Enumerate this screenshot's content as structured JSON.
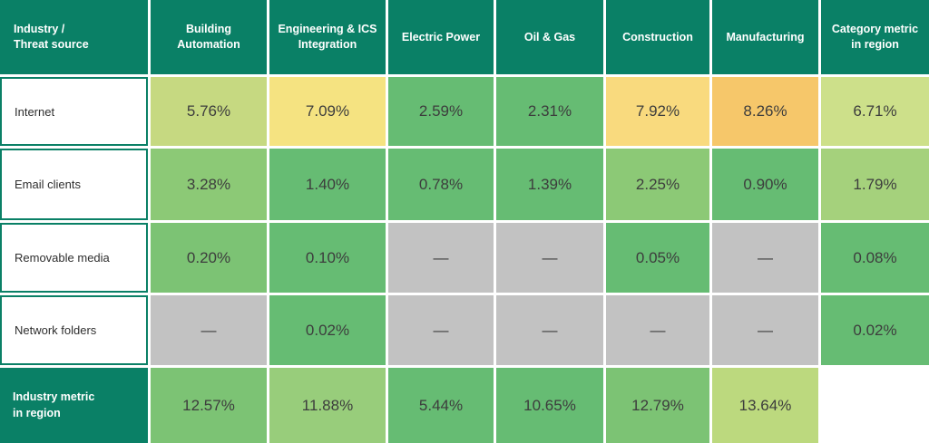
{
  "table": {
    "columns": [
      {
        "label": "Industry /\nThreat source"
      },
      {
        "label": "Building Automation"
      },
      {
        "label": "Engineering & ICS\nIntegration"
      },
      {
        "label": "Electric Power"
      },
      {
        "label": "Oil & Gas"
      },
      {
        "label": "Construction"
      },
      {
        "label": "Manufacturing"
      },
      {
        "label": "Category metric\nin region"
      }
    ],
    "rows": [
      {
        "label": "Internet",
        "teal_label": false,
        "cells": [
          {
            "text": "5.76%",
            "bg": "#c6d981"
          },
          {
            "text": "7.09%",
            "bg": "#f5e381"
          },
          {
            "text": "2.59%",
            "bg": "#66bc73"
          },
          {
            "text": "2.31%",
            "bg": "#66bc73"
          },
          {
            "text": "7.92%",
            "bg": "#f9da7e"
          },
          {
            "text": "8.26%",
            "bg": "#f6c76a"
          },
          {
            "text": "6.71%",
            "bg": "#cde08a"
          }
        ]
      },
      {
        "label": "Email clients",
        "teal_label": false,
        "cells": [
          {
            "text": "3.28%",
            "bg": "#8cc976"
          },
          {
            "text": "1.40%",
            "bg": "#66bc73"
          },
          {
            "text": "0.78%",
            "bg": "#66bc73"
          },
          {
            "text": "1.39%",
            "bg": "#66bc73"
          },
          {
            "text": "2.25%",
            "bg": "#8cc976"
          },
          {
            "text": "0.90%",
            "bg": "#66bc73"
          },
          {
            "text": "1.79%",
            "bg": "#a5d17c"
          }
        ]
      },
      {
        "label": "Removable media",
        "teal_label": false,
        "cells": [
          {
            "text": "0.20%",
            "bg": "#7cc374"
          },
          {
            "text": "0.10%",
            "bg": "#66bc73"
          },
          {
            "text": "—",
            "bg": "#c2c2c2"
          },
          {
            "text": "—",
            "bg": "#c2c2c2"
          },
          {
            "text": "0.05%",
            "bg": "#66bc73"
          },
          {
            "text": "—",
            "bg": "#c2c2c2"
          },
          {
            "text": "0.08%",
            "bg": "#66bc73"
          }
        ]
      },
      {
        "label": "Network folders",
        "teal_label": false,
        "cells": [
          {
            "text": "—",
            "bg": "#c2c2c2"
          },
          {
            "text": "0.02%",
            "bg": "#66bc73"
          },
          {
            "text": "—",
            "bg": "#c2c2c2"
          },
          {
            "text": "—",
            "bg": "#c2c2c2"
          },
          {
            "text": "—",
            "bg": "#c2c2c2"
          },
          {
            "text": "—",
            "bg": "#c2c2c2"
          },
          {
            "text": "0.02%",
            "bg": "#66bc73"
          }
        ]
      },
      {
        "label": "Industry metric\nin region",
        "teal_label": true,
        "cells": [
          {
            "text": "12.57%",
            "bg": "#7cc374"
          },
          {
            "text": "11.88%",
            "bg": "#98cd7b"
          },
          {
            "text": "5.44%",
            "bg": "#66bc73"
          },
          {
            "text": "10.65%",
            "bg": "#66bc73"
          },
          {
            "text": "12.79%",
            "bg": "#7cc374"
          },
          {
            "text": "13.64%",
            "bg": "#bcd97e"
          },
          {
            "text": "",
            "bg": "#ffffff",
            "empty": true
          }
        ]
      }
    ]
  },
  "colors": {
    "header_teal": "#0a8066",
    "cell_green": "#66bc73",
    "cell_gray": "#c2c2c2",
    "cell_yellow": "#f5e381",
    "cell_orange": "#f6c76a",
    "gap_white": "#ffffff"
  },
  "chart_data": {
    "type": "heatmap",
    "title": "",
    "unit": "%",
    "columns": [
      "Building Automation",
      "Engineering & ICS Integration",
      "Electric Power",
      "Oil & Gas",
      "Construction",
      "Manufacturing",
      "Category metric in region"
    ],
    "rows": [
      "Internet",
      "Email clients",
      "Removable media",
      "Network folders",
      "Industry metric in region"
    ],
    "values": [
      [
        5.76,
        7.09,
        2.59,
        2.31,
        7.92,
        8.26,
        6.71
      ],
      [
        3.28,
        1.4,
        0.78,
        1.39,
        2.25,
        0.9,
        1.79
      ],
      [
        0.2,
        0.1,
        null,
        null,
        0.05,
        null,
        0.08
      ],
      [
        null,
        0.02,
        null,
        null,
        null,
        null,
        0.02
      ],
      [
        12.57,
        11.88,
        5.44,
        10.65,
        12.79,
        13.64,
        null
      ]
    ],
    "legend_position": "none",
    "notes": "null = no data, shown as em dash on gray cell; color scale green (low) to orange (high)"
  }
}
